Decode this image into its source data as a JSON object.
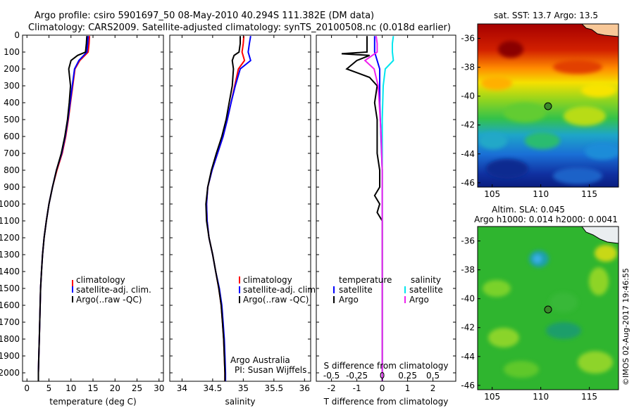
{
  "title": {
    "line1": "Argo profile: csiro 5901697_50 08-May-2010 40.294S 111.382E (DM data)",
    "line2": "Climatology: CARS2009. Satellite-adjusted climatology: synTS_20100508.nc (0.018d earlier)"
  },
  "colors": {
    "climatology": "#ff0000",
    "satellite": "#0000ff",
    "argo": "#000000",
    "sat_s": "#00e5ee",
    "argo_s": "#ee22ee",
    "marker_fill": "#3a8a2a"
  },
  "chart_data": [
    {
      "type": "line",
      "name": "temperature",
      "xlabel": "temperature (deg C)",
      "ylabel": "",
      "xlim": [
        -1,
        31
      ],
      "ylim": [
        2050,
        0
      ],
      "xticks": [
        "0",
        "5",
        "10",
        "15",
        "20",
        "25",
        "30"
      ],
      "yticks": [
        "0",
        "100",
        "200",
        "300",
        "400",
        "500",
        "600",
        "700",
        "800",
        "900",
        "1000",
        "1100",
        "1200",
        "1300",
        "1400",
        "1500",
        "1600",
        "1700",
        "1800",
        "1900",
        "2000"
      ],
      "legend": [
        "climatology",
        "satellite-adj. clim.",
        "Argo(..raw -QC)"
      ],
      "series": [
        {
          "name": "climatology",
          "color": "#ff0000",
          "depth": [
            5,
            50,
            100,
            150,
            200,
            300,
            400,
            500,
            600,
            700,
            800,
            900,
            1000,
            1100,
            1200,
            1300,
            1400,
            1500,
            1600,
            1700,
            1800,
            1900,
            2000,
            2050
          ],
          "values": [
            14.2,
            14.1,
            13.9,
            12.0,
            10.9,
            10.4,
            9.9,
            9.4,
            8.8,
            8.0,
            6.8,
            5.8,
            5.0,
            4.4,
            3.9,
            3.55,
            3.3,
            3.1,
            3.0,
            2.9,
            2.8,
            2.7,
            2.6,
            2.6
          ]
        },
        {
          "name": "satellite-adj. clim.",
          "color": "#0000ff",
          "depth": [
            5,
            50,
            100,
            150,
            200,
            300,
            400,
            500,
            600,
            700,
            800,
            900,
            1000,
            1100,
            1200,
            1300,
            1400,
            1500,
            1600,
            1700,
            1800,
            1900,
            2000,
            2050
          ],
          "values": [
            13.9,
            13.8,
            13.6,
            11.8,
            10.8,
            10.3,
            9.8,
            9.3,
            8.7,
            7.9,
            6.7,
            5.8,
            5.0,
            4.4,
            3.9,
            3.55,
            3.3,
            3.1,
            3.0,
            2.9,
            2.8,
            2.7,
            2.6,
            2.6
          ]
        },
        {
          "name": "Argo",
          "color": "#000000",
          "depth": [
            5,
            50,
            100,
            120,
            150,
            200,
            300,
            400,
            500,
            600,
            700,
            800,
            900,
            1000,
            1100,
            1200,
            1300,
            1400,
            1500,
            1600,
            1700,
            1800,
            1900,
            2000,
            2050
          ],
          "values": [
            13.6,
            13.5,
            13.3,
            11.5,
            10.0,
            9.5,
            9.9,
            9.6,
            9.2,
            8.6,
            7.8,
            6.7,
            5.8,
            5.0,
            4.4,
            3.9,
            3.55,
            3.3,
            3.1,
            3.0,
            2.9,
            2.8,
            2.7,
            2.6,
            2.6
          ]
        }
      ]
    },
    {
      "type": "line",
      "name": "salinity",
      "xlabel": "salinity",
      "xlim": [
        33.8,
        36.1
      ],
      "ylim": [
        2050,
        0
      ],
      "xticks": [
        "34",
        "34.5",
        "35",
        "35.5",
        "36"
      ],
      "legend": [
        "climatology",
        "satellite-adj. clim.",
        "Argo(..raw -QC)"
      ],
      "annotation": [
        "Argo Australia",
        "PI: Susan Wijffels"
      ],
      "series": [
        {
          "name": "climatology",
          "color": "#ff0000",
          "depth": [
            5,
            50,
            100,
            150,
            200,
            300,
            400,
            500,
            600,
            700,
            800,
            900,
            1000,
            1100,
            1200,
            1300,
            1400,
            1500,
            1600,
            1700,
            1800,
            1900,
            2000,
            2050
          ],
          "values": [
            35.01,
            35.0,
            34.98,
            35.02,
            34.92,
            34.86,
            34.8,
            34.74,
            34.67,
            34.58,
            34.49,
            34.42,
            34.4,
            34.41,
            34.44,
            34.5,
            34.55,
            34.6,
            34.64,
            34.66,
            34.68,
            34.69,
            34.7,
            34.7
          ]
        },
        {
          "name": "satellite-adj. clim.",
          "color": "#0000ff",
          "depth": [
            5,
            50,
            100,
            150,
            200,
            300,
            400,
            500,
            600,
            700,
            800,
            900,
            1000,
            1100,
            1200,
            1300,
            1400,
            1500,
            1600,
            1700,
            1800,
            1900,
            2000,
            2050
          ],
          "values": [
            35.12,
            35.1,
            35.08,
            35.12,
            34.95,
            34.87,
            34.8,
            34.74,
            34.67,
            34.58,
            34.49,
            34.42,
            34.4,
            34.41,
            34.44,
            34.5,
            34.55,
            34.61,
            34.65,
            34.67,
            34.69,
            34.7,
            34.71,
            34.71
          ]
        },
        {
          "name": "Argo",
          "color": "#000000",
          "depth": [
            5,
            50,
            100,
            120,
            150,
            200,
            300,
            400,
            500,
            600,
            700,
            800,
            900,
            1000,
            1100,
            1200,
            1300,
            1400,
            1500,
            1600,
            1700,
            1800,
            1900,
            2000,
            2050
          ],
          "values": [
            34.95,
            34.95,
            34.93,
            34.85,
            34.82,
            34.84,
            34.82,
            34.77,
            34.72,
            34.65,
            34.56,
            34.48,
            34.42,
            34.39,
            34.4,
            34.44,
            34.5,
            34.55,
            34.6,
            34.64,
            34.66,
            34.68,
            34.69,
            34.7,
            34.7
          ]
        }
      ]
    },
    {
      "type": "line",
      "name": "differences",
      "xlabel": "T difference from climatology",
      "top_label": "S difference from climatology",
      "xlim": [
        -2.6,
        2.9
      ],
      "ylim": [
        2050,
        0
      ],
      "xticks": [
        "-2",
        "-1",
        "0",
        "1",
        "2"
      ],
      "top_ticks": [
        "-0.5",
        "-0.25",
        "0",
        "0.25",
        "0.5"
      ],
      "legend_t": [
        "temperature",
        "satellite",
        "Argo"
      ],
      "legend_s": [
        "salinity",
        "satellite",
        "Argo"
      ],
      "series": [
        {
          "name": "T satellite",
          "color": "#0000ff",
          "depth": [
            5,
            50,
            100,
            150,
            200,
            300,
            400,
            600,
            800,
            1000,
            1200,
            1500,
            2000,
            2050
          ],
          "values": [
            -0.3,
            -0.3,
            -0.3,
            -0.2,
            -0.1,
            -0.1,
            -0.1,
            -0.05,
            0,
            0,
            0,
            0,
            0,
            0
          ]
        },
        {
          "name": "T Argo",
          "color": "#000000",
          "depth": [
            5,
            50,
            100,
            110,
            120,
            150,
            200,
            250,
            300,
            400,
            500,
            600,
            700,
            800,
            900,
            950,
            1000,
            1050,
            1100,
            1200,
            1300,
            1500,
            1800,
            2000,
            2050
          ],
          "values": [
            -0.6,
            -0.6,
            -0.6,
            -1.6,
            -0.5,
            -1.0,
            -1.4,
            -0.5,
            -0.2,
            -0.3,
            -0.2,
            -0.2,
            -0.2,
            -0.1,
            -0.1,
            -0.3,
            -0.1,
            -0.2,
            0,
            0,
            0,
            0,
            0,
            0,
            0
          ]
        },
        {
          "name": "S satellite",
          "color": "#00e5ee",
          "depth": [
            5,
            50,
            100,
            150,
            200,
            300,
            500,
            800,
            1000,
            1100,
            1200,
            1500,
            2000,
            2050
          ],
          "values": [
            0.11,
            0.1,
            0.1,
            0.11,
            0.03,
            0.01,
            0,
            0,
            0,
            0,
            0,
            0,
            0,
            0
          ]
        },
        {
          "name": "S Argo",
          "color": "#ee22ee",
          "depth": [
            5,
            50,
            100,
            150,
            200,
            300,
            400,
            500,
            600,
            800,
            1000,
            1200,
            1500,
            2000,
            2050
          ],
          "values": [
            -0.06,
            -0.05,
            -0.05,
            -0.17,
            -0.08,
            -0.04,
            -0.03,
            -0.02,
            -0.01,
            0,
            0,
            0,
            0,
            0,
            0
          ]
        }
      ]
    }
  ],
  "sst_map": {
    "title": "sat. SST: 13.7  Argo: 13.5",
    "xticks": [
      "105",
      "110",
      "115"
    ],
    "yticks": [
      "-36",
      "-38",
      "-40",
      "-42",
      "-44",
      "-46"
    ]
  },
  "sla_map": {
    "title1": "Altim. SLA: 0.045",
    "title2": "Argo h1000: 0.014 h2000: 0.0041",
    "xticks": [
      "105",
      "110",
      "115"
    ],
    "yticks": [
      "-36",
      "-38",
      "-40",
      "-42",
      "-44",
      "-46"
    ]
  },
  "footer": "©IMOS 02-Aug-2017 19:46:55"
}
